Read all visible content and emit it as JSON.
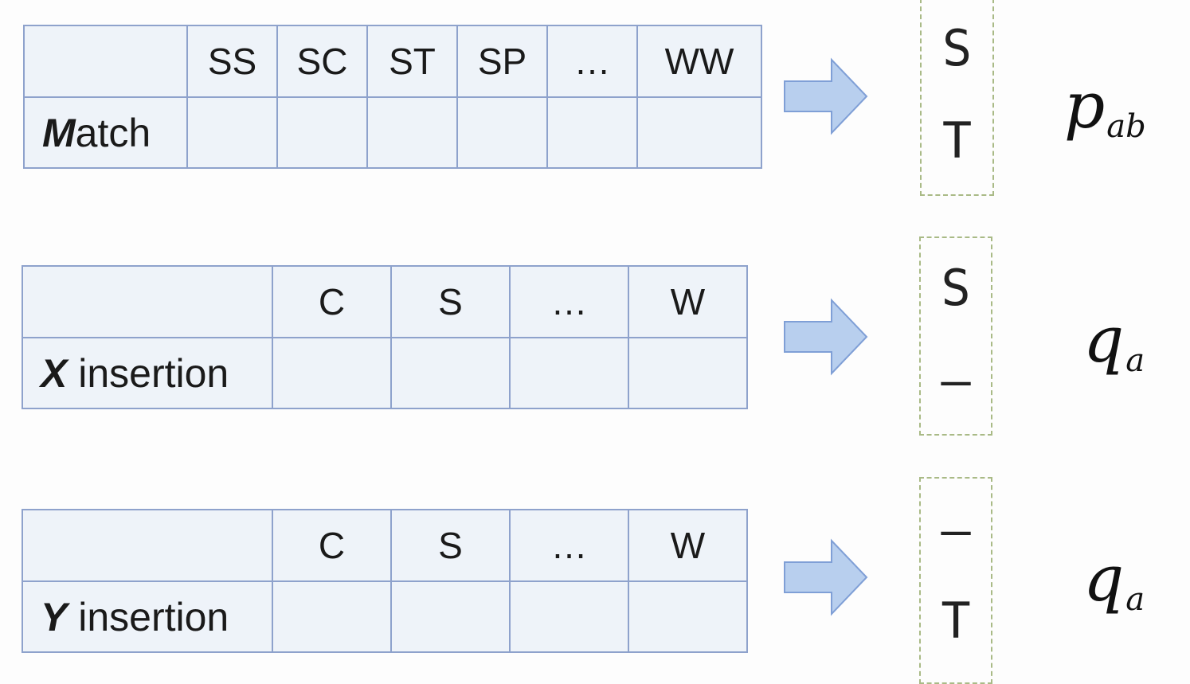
{
  "tables": [
    {
      "id": "match",
      "label_letter": "M",
      "label_rest": "atch",
      "headers": [
        "SS",
        "SC",
        "ST",
        "SP",
        "…",
        "WW"
      ],
      "column": [
        "S",
        "T"
      ],
      "probability": "p",
      "subscript": "ab"
    },
    {
      "id": "x-insertion",
      "label_letter": "X",
      "label_rest": " insertion",
      "headers": [
        "C",
        "S",
        "…",
        "W"
      ],
      "column": [
        "S",
        "–"
      ],
      "probability": "q",
      "subscript": "a"
    },
    {
      "id": "y-insertion",
      "label_letter": "Y",
      "label_rest": " insertion",
      "headers": [
        "C",
        "S",
        "…",
        "W"
      ],
      "column": [
        "–",
        "T"
      ],
      "probability": "q",
      "subscript": "a"
    }
  ],
  "colors": {
    "table_border": "#8ea2cc",
    "table_fill": "#eef3f9",
    "arrow_fill": "#b8cfee",
    "arrow_stroke": "#7f9fd6",
    "dashed_box": "#a9ba86"
  }
}
